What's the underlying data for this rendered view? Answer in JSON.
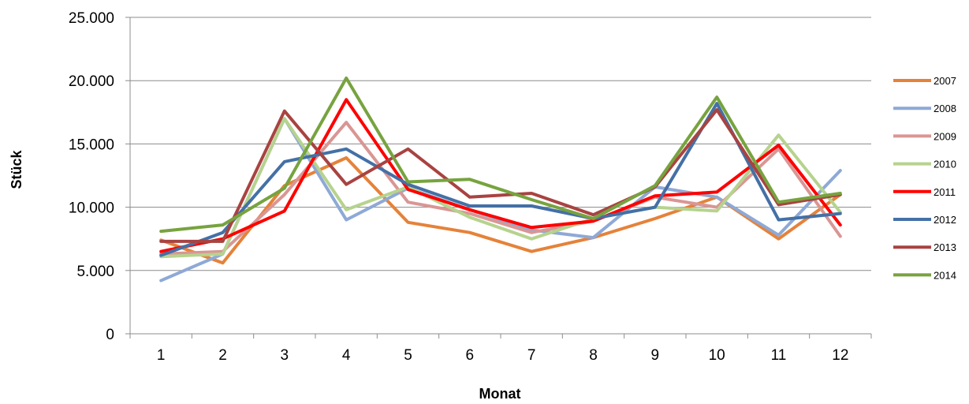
{
  "chart_data": {
    "type": "line",
    "title": "",
    "xlabel": "Monat",
    "ylabel": "Stück",
    "x": [
      1,
      2,
      3,
      4,
      5,
      6,
      7,
      8,
      9,
      10,
      11,
      12
    ],
    "ylim": [
      0,
      25000
    ],
    "yticks": [
      0,
      5000,
      10000,
      15000,
      20000,
      25000
    ],
    "ytick_labels": [
      "0",
      "5.000",
      "10.000",
      "15.000",
      "20.000",
      "25.000"
    ],
    "grid": "horizontal",
    "legend_position": "right",
    "series": [
      {
        "name": "2007",
        "color": "#E5823A",
        "values": [
          7400,
          5600,
          11700,
          13900,
          8800,
          8000,
          6500,
          7600,
          9100,
          10800,
          7500,
          11000
        ]
      },
      {
        "name": "2008",
        "color": "#8EA9D6",
        "values": [
          4200,
          6300,
          17000,
          9000,
          11500,
          9800,
          8200,
          7600,
          11600,
          10800,
          7800,
          12900
        ]
      },
      {
        "name": "2009",
        "color": "#D99694",
        "values": [
          6300,
          6500,
          11000,
          16700,
          10400,
          9500,
          8000,
          8900,
          10800,
          10000,
          14600,
          7700
        ]
      },
      {
        "name": "2010",
        "color": "#B6D38E",
        "values": [
          6100,
          6300,
          17000,
          9800,
          11600,
          9200,
          7500,
          9100,
          10000,
          9700,
          15700,
          9600
        ]
      },
      {
        "name": "2011",
        "color": "#FF0000",
        "values": [
          6500,
          7500,
          9700,
          18500,
          11400,
          9800,
          8400,
          8900,
          10900,
          11200,
          14900,
          8600
        ]
      },
      {
        "name": "2012",
        "color": "#4470A6",
        "values": [
          6200,
          8000,
          13600,
          14600,
          11800,
          10100,
          10100,
          9100,
          10000,
          18200,
          9000,
          9500
        ]
      },
      {
        "name": "2013",
        "color": "#A84341",
        "values": [
          7300,
          7300,
          17600,
          11800,
          14600,
          10800,
          11100,
          9400,
          11600,
          17700,
          10200,
          11000
        ]
      },
      {
        "name": "2014",
        "color": "#77A33F",
        "values": [
          8100,
          8600,
          11500,
          20200,
          12000,
          12200,
          10600,
          9100,
          11700,
          18700,
          10400,
          11100
        ]
      }
    ]
  }
}
